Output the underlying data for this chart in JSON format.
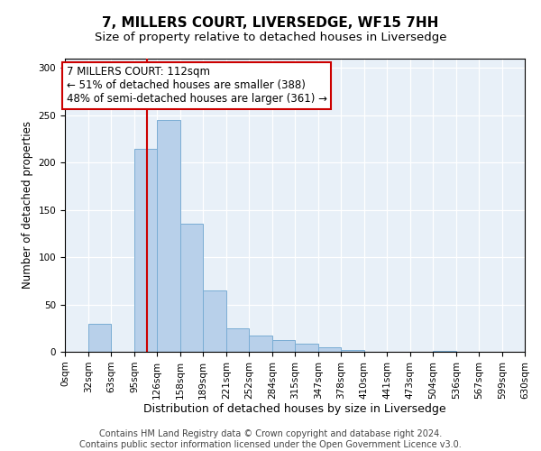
{
  "title": "7, MILLERS COURT, LIVERSEDGE, WF15 7HH",
  "subtitle": "Size of property relative to detached houses in Liversedge",
  "xlabel": "Distribution of detached houses by size in Liversedge",
  "ylabel": "Number of detached properties",
  "bar_color": "#b8d0ea",
  "bar_edge_color": "#7aadd4",
  "background_color": "#e8f0f8",
  "annotation_text": "7 MILLERS COURT: 112sqm\n← 51% of detached houses are smaller (388)\n48% of semi-detached houses are larger (361) →",
  "vline_x": 112,
  "vline_color": "#cc0000",
  "bin_edges": [
    0,
    32,
    63,
    95,
    126,
    158,
    189,
    221,
    252,
    284,
    315,
    347,
    378,
    410,
    441,
    473,
    504,
    536,
    567,
    599,
    630
  ],
  "bar_heights": [
    0,
    30,
    0,
    215,
    245,
    135,
    65,
    25,
    17,
    12,
    9,
    5,
    2,
    0,
    0,
    0,
    1,
    0,
    0,
    0
  ],
  "ylim": [
    0,
    310
  ],
  "yticks": [
    0,
    50,
    100,
    150,
    200,
    250,
    300
  ],
  "footer_text": "Contains HM Land Registry data © Crown copyright and database right 2024.\nContains public sector information licensed under the Open Government Licence v3.0.",
  "title_fontsize": 11,
  "subtitle_fontsize": 9.5,
  "xlabel_fontsize": 9,
  "ylabel_fontsize": 8.5,
  "tick_fontsize": 7.5,
  "footer_fontsize": 7,
  "annot_fontsize": 8.5
}
